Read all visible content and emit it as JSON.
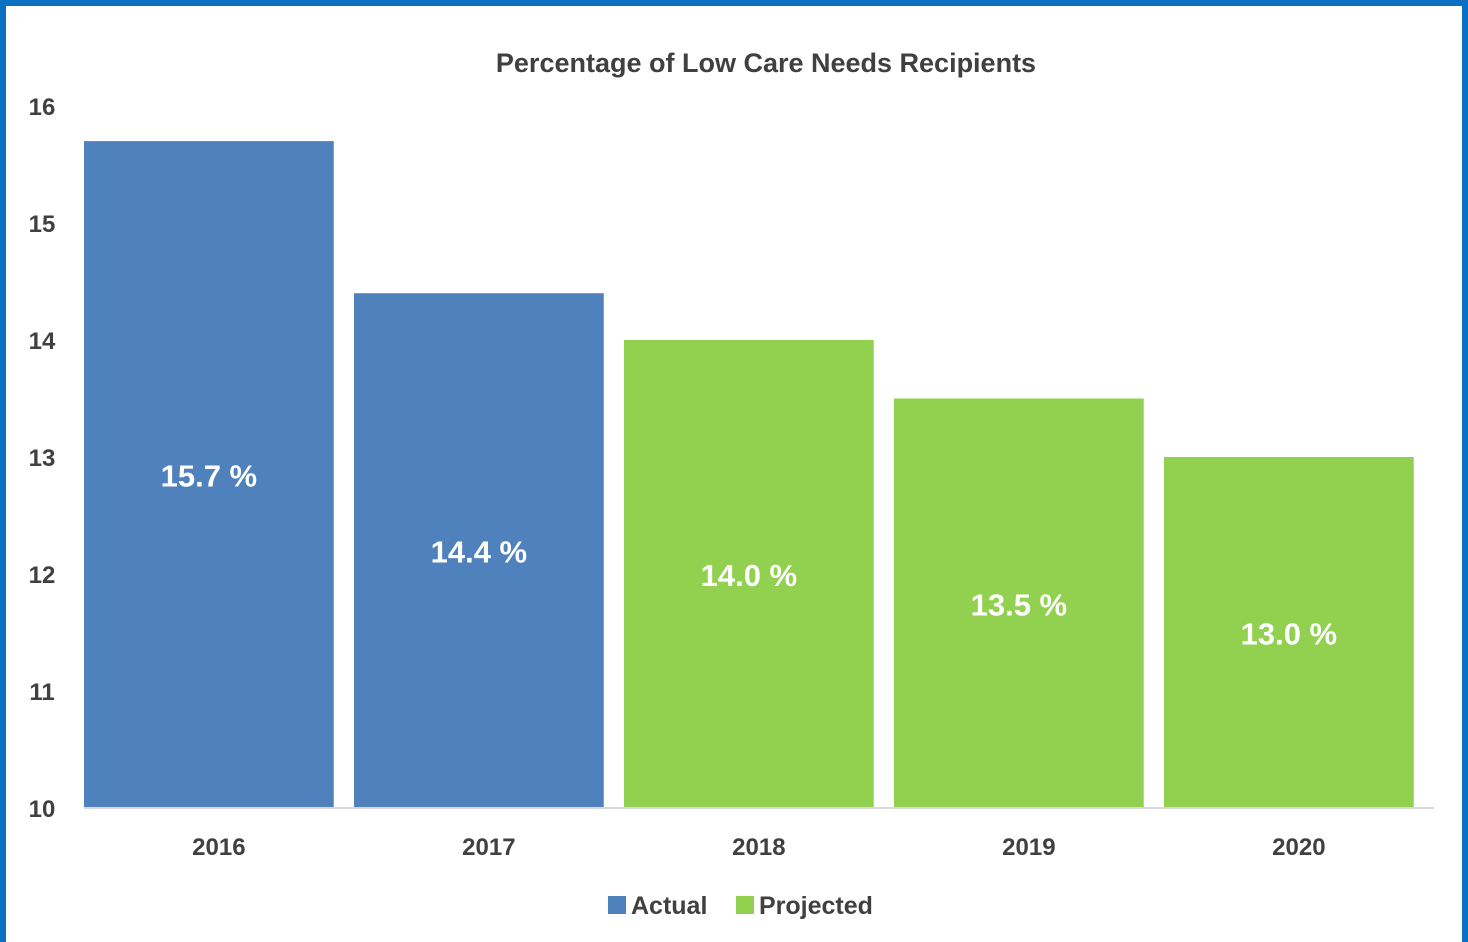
{
  "chart_data": {
    "type": "bar",
    "title": "Percentage of Low Care Needs Recipients",
    "xlabel": "",
    "ylabel": "",
    "categories": [
      "2016",
      "2017",
      "2018",
      "2019",
      "2020"
    ],
    "values": [
      15.7,
      14.4,
      14.0,
      13.5,
      13.0
    ],
    "data_labels": [
      "15.7 %",
      "14.4 %",
      "14.0 %",
      "13.5 %",
      "13.0 %"
    ],
    "series_of_bar": [
      "Actual",
      "Actual",
      "Projected",
      "Projected",
      "Projected"
    ],
    "series": [
      {
        "name": "Actual",
        "color": "#4f81bd"
      },
      {
        "name": "Projected",
        "color": "#92d050"
      }
    ],
    "ylim": [
      10,
      16
    ],
    "yticks": [
      10,
      11,
      12,
      13,
      14,
      15,
      16
    ],
    "grid": false,
    "legend_position": "bottom"
  }
}
